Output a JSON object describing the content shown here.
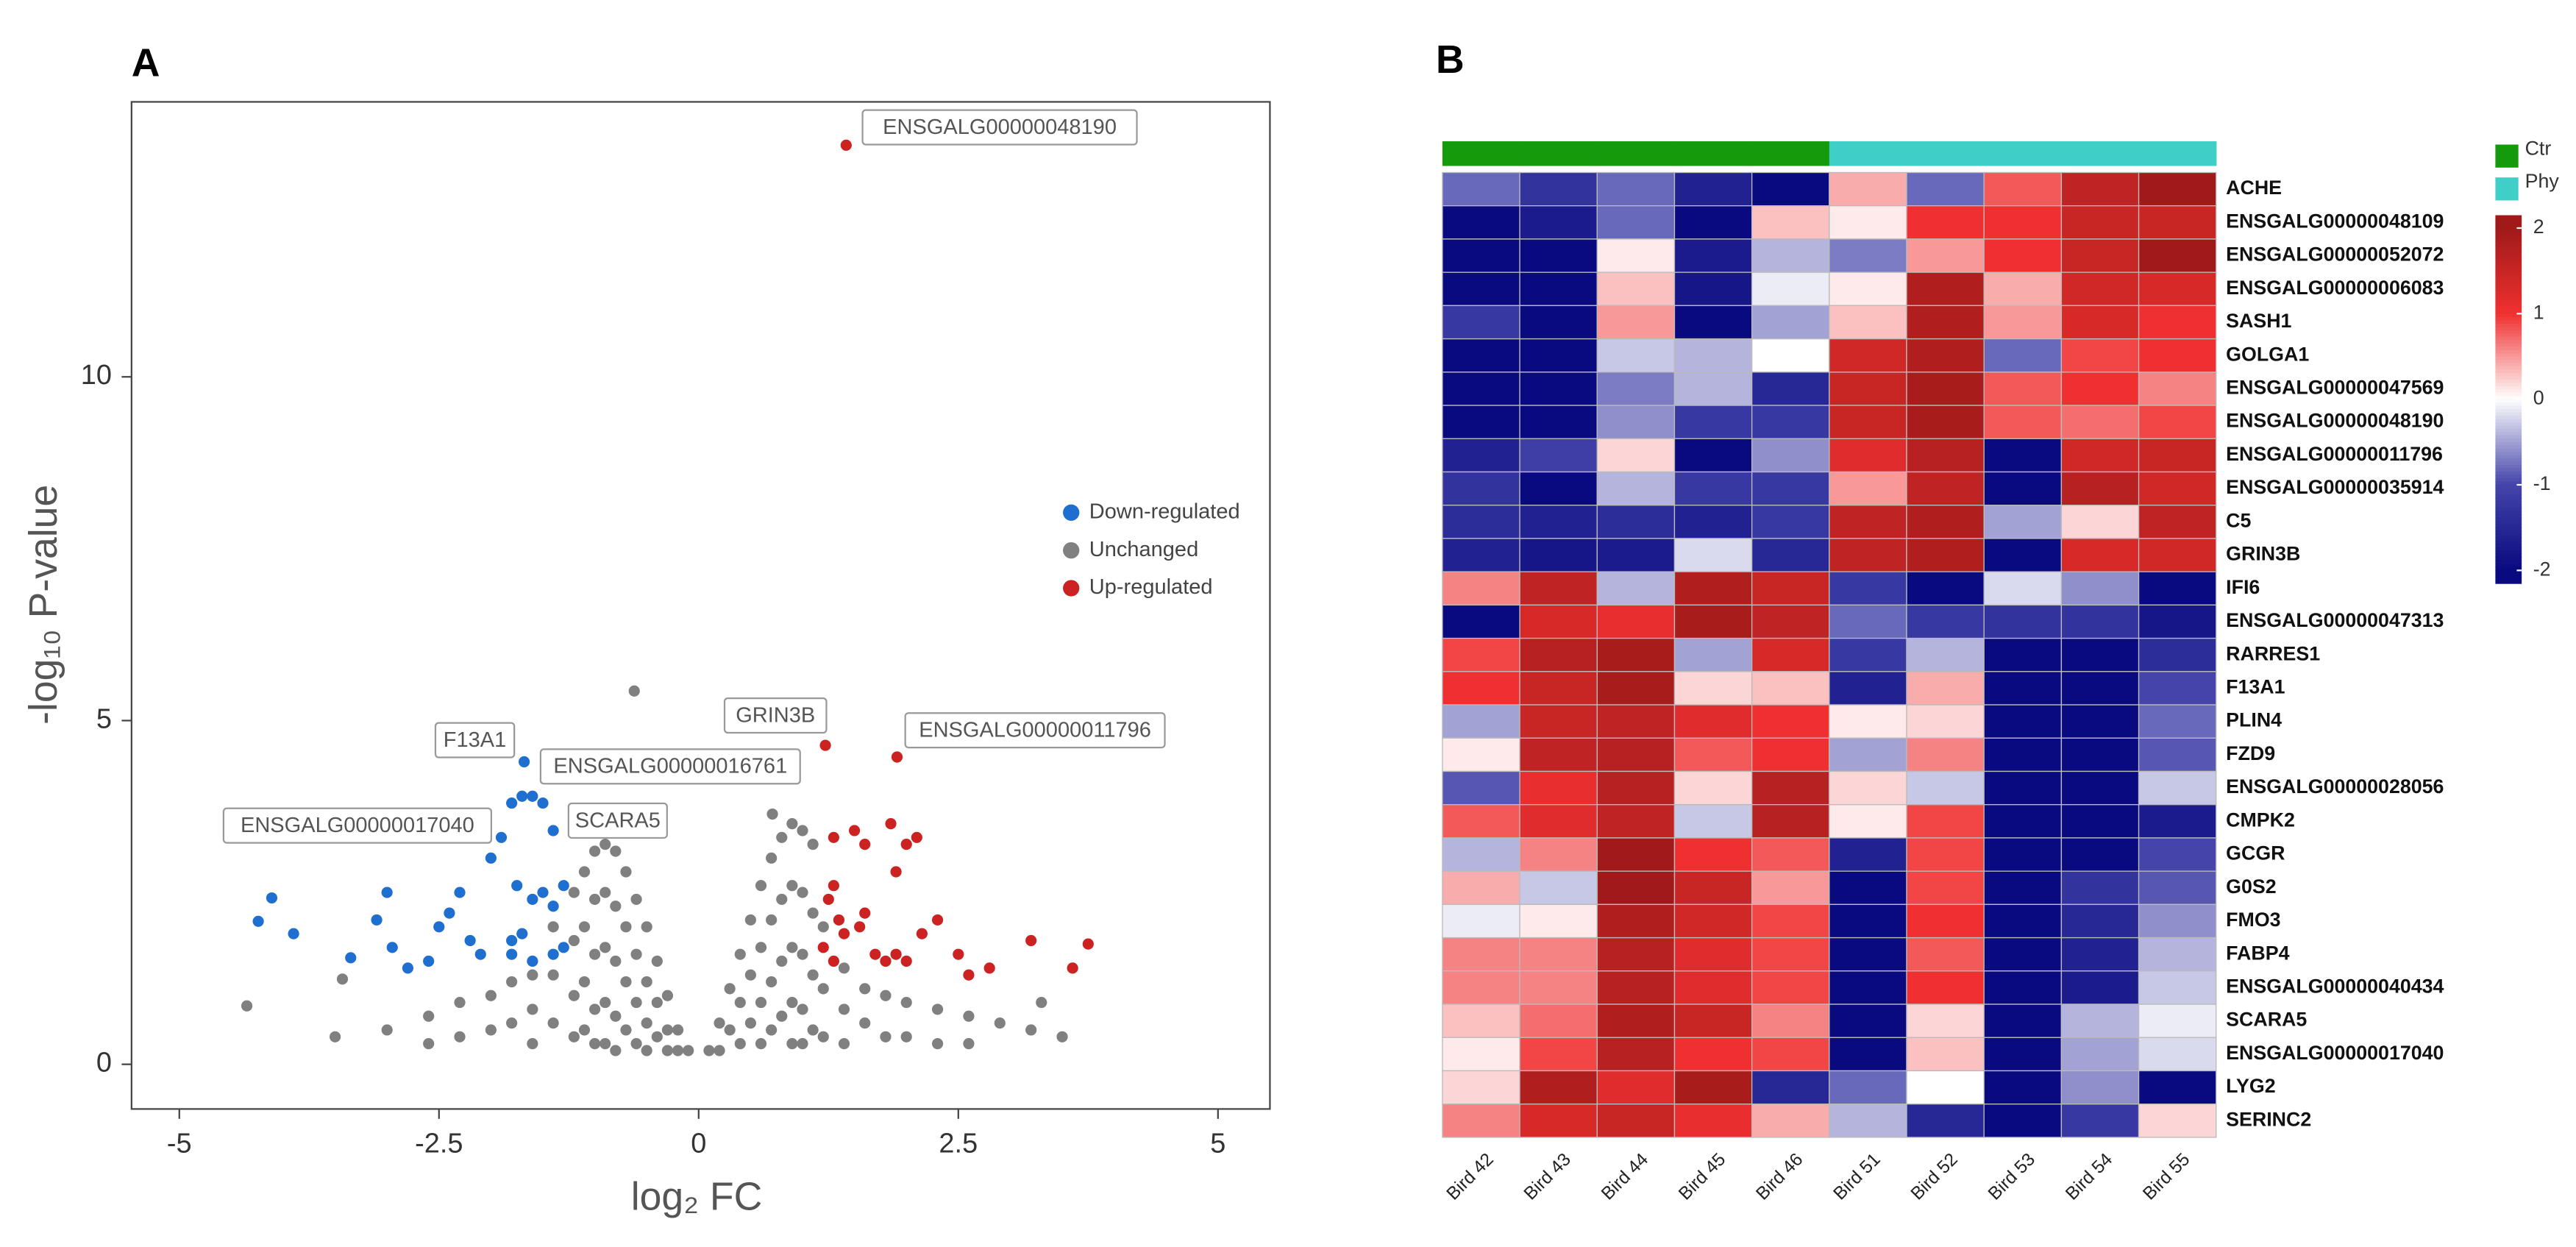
{
  "chart_data": [
    {
      "type": "scatter",
      "panel": "A",
      "xlabel": "log₂ FC",
      "ylabel": "-log₁₀ P-value",
      "xlim": [
        -5.46,
        5.5
      ],
      "ylim": [
        -0.65,
        14.0
      ],
      "xticks": [
        -5,
        -2.5,
        0,
        2.5,
        5
      ],
      "yticks": [
        0,
        5,
        10
      ],
      "legend": "center right",
      "series": [
        {
          "name": "Down-regulated",
          "color": "#1f6fd1",
          "x": [
            -3.9,
            -3.35,
            -3.0,
            -3.1,
            -2.95,
            -2.8,
            -2.6,
            -2.5,
            -2.4,
            -2.2,
            -2.1,
            -2.0,
            -1.9,
            -1.8,
            -1.7,
            -1.6,
            -1.5,
            -1.4,
            -1.75,
            -1.6,
            -1.5,
            -1.4,
            -1.3,
            -1.8,
            -1.6,
            -1.4,
            -1.3,
            -1.7,
            -2.3,
            -1.8,
            -1.68,
            -4.24,
            -4.11
          ],
          "y": [
            1.9,
            1.55,
            2.5,
            2.1,
            1.7,
            1.4,
            1.5,
            2.0,
            2.2,
            1.8,
            1.6,
            3.0,
            3.3,
            3.8,
            3.9,
            3.9,
            3.8,
            3.4,
            2.6,
            2.4,
            2.5,
            2.3,
            2.6,
            1.6,
            1.5,
            1.6,
            1.7,
            1.9,
            2.5,
            1.8,
            4.4,
            2.08,
            2.42
          ]
        },
        {
          "name": "Unchanged",
          "color": "#808080",
          "x": [
            -0.1,
            -0.2,
            -0.2,
            -0.3,
            -0.3,
            -0.3,
            -0.4,
            -0.4,
            -0.4,
            -0.5,
            -0.5,
            -0.5,
            -0.5,
            -0.6,
            -0.6,
            -0.6,
            -0.6,
            -0.62,
            -0.7,
            -0.7,
            -0.7,
            -0.7,
            -0.8,
            -0.8,
            -0.8,
            -0.8,
            -0.8,
            -0.9,
            -0.9,
            -0.9,
            -0.9,
            -0.9,
            -1.0,
            -1.0,
            -1.0,
            -1.0,
            -1.0,
            -1.1,
            -1.1,
            -1.1,
            -1.1,
            -1.2,
            -1.2,
            -1.2,
            -1.2,
            -1.4,
            -1.4,
            -1.4,
            -1.6,
            -1.6,
            -1.6,
            -1.8,
            -1.8,
            -2.0,
            -2.0,
            -2.3,
            -2.3,
            -2.6,
            -2.6,
            -3.0,
            -3.5,
            -3.43,
            -4.35,
            0.1,
            0.2,
            0.2,
            0.3,
            0.3,
            0.4,
            0.4,
            0.4,
            0.5,
            0.5,
            0.5,
            0.6,
            0.6,
            0.6,
            0.6,
            0.7,
            0.7,
            0.7,
            0.7,
            0.71,
            0.8,
            0.8,
            0.8,
            0.8,
            0.9,
            0.9,
            0.9,
            0.9,
            0.9,
            1.0,
            1.0,
            1.0,
            1.0,
            1.0,
            1.1,
            1.1,
            1.1,
            1.1,
            1.2,
            1.2,
            1.2,
            1.4,
            1.4,
            1.4,
            1.6,
            1.6,
            1.8,
            1.8,
            2.0,
            2.0,
            2.3,
            2.3,
            2.6,
            2.6,
            2.9,
            3.2,
            3.5,
            3.3
          ],
          "y": [
            0.2,
            0.5,
            0.2,
            1.0,
            0.5,
            0.2,
            1.5,
            0.9,
            0.4,
            2.0,
            1.2,
            0.6,
            0.2,
            2.4,
            1.6,
            0.9,
            0.3,
            5.43,
            2.8,
            2.0,
            1.2,
            0.5,
            3.1,
            2.3,
            1.5,
            0.7,
            0.2,
            3.2,
            2.5,
            1.7,
            0.9,
            0.3,
            3.1,
            2.4,
            1.6,
            0.8,
            0.3,
            2.8,
            2.0,
            1.2,
            0.5,
            2.5,
            1.8,
            1.0,
            0.4,
            2.0,
            1.3,
            0.6,
            1.3,
            0.8,
            0.3,
            1.2,
            0.6,
            1.0,
            0.5,
            0.9,
            0.4,
            0.7,
            0.3,
            0.5,
            0.4,
            1.24,
            0.85,
            0.2,
            0.6,
            0.2,
            1.1,
            0.5,
            1.6,
            0.9,
            0.3,
            2.1,
            1.3,
            0.6,
            2.6,
            1.7,
            0.9,
            0.3,
            3.0,
            2.1,
            1.2,
            0.5,
            3.64,
            3.3,
            2.4,
            1.5,
            0.7,
            3.5,
            2.6,
            1.7,
            0.9,
            0.3,
            3.4,
            2.5,
            1.6,
            0.8,
            0.3,
            3.2,
            2.2,
            1.3,
            0.5,
            2.0,
            1.1,
            0.4,
            1.4,
            0.8,
            0.3,
            1.1,
            0.6,
            1.0,
            0.4,
            0.9,
            0.4,
            0.8,
            0.3,
            0.7,
            0.3,
            0.6,
            0.5,
            0.4,
            0.9
          ]
        },
        {
          "name": "Up-regulated",
          "color": "#cc2222",
          "x": [
            1.42,
            1.22,
            1.91,
            1.3,
            1.5,
            1.6,
            1.85,
            2.0,
            2.1,
            1.9,
            1.3,
            1.25,
            1.35,
            1.4,
            1.55,
            1.6,
            1.7,
            1.8,
            1.9,
            2.0,
            2.3,
            2.5,
            2.6,
            2.8,
            3.2,
            3.6,
            3.75,
            1.2,
            1.3,
            2.15
          ],
          "y": [
            13.37,
            4.64,
            4.47,
            3.3,
            3.4,
            3.2,
            3.5,
            3.2,
            3.3,
            2.8,
            2.6,
            2.4,
            2.1,
            1.9,
            2.0,
            2.2,
            1.6,
            1.5,
            1.6,
            1.5,
            2.1,
            1.6,
            1.3,
            1.4,
            1.8,
            1.4,
            1.75,
            1.7,
            1.5,
            1.9
          ]
        }
      ],
      "annotations": [
        "ENSGALG00000048190",
        "GRIN3B",
        "ENSGALG00000011796",
        "F13A1",
        "ENSGALG00000016761",
        "ENSGALG00000017040",
        "SCARA5"
      ]
    },
    {
      "type": "heatmap",
      "panel": "B",
      "columns": [
        "Bird 42",
        "Bird 43",
        "Bird 44",
        "Bird 45",
        "Bird 46",
        "Bird 51",
        "Bird 52",
        "Bird 53",
        "Bird 54",
        "Bird 55"
      ],
      "column_groups": [
        "Ctr",
        "Ctr",
        "Ctr",
        "Ctr",
        "Ctr",
        "Phy",
        "Phy",
        "Phy",
        "Phy",
        "Phy"
      ],
      "groups": [
        {
          "name": "Ctr",
          "color": "#159a0c"
        },
        {
          "name": "Phy",
          "color": "#40cfc8"
        }
      ],
      "rows": [
        "ACHE",
        "ENSGALG00000048109",
        "ENSGALG00000052072",
        "ENSGALG00000006083",
        "SASH1",
        "GOLGA1",
        "ENSGALG00000047569",
        "ENSGALG00000048190",
        "ENSGALG00000011796",
        "ENSGALG00000035914",
        "C5",
        "GRIN3B",
        "IFI6",
        "ENSGALG00000047313",
        "RARRES1",
        "F13A1",
        "PLIN4",
        "FZD9",
        "ENSGALG00000028056",
        "CMPK2",
        "GCGR",
        "G0S2",
        "FMO3",
        "FABP4",
        "ENSGALG00000040434",
        "SCARA5",
        "ENSGALG00000017040",
        "LYG2",
        "SERINC2"
      ],
      "values": [
        [
          -0.8,
          -1.3,
          -0.8,
          -1.6,
          -2,
          0.4,
          -0.8,
          0.8,
          1.6,
          2.0
        ],
        [
          -2,
          -1.7,
          -0.8,
          -2,
          0.3,
          0.1,
          1.0,
          1.0,
          1.5,
          1.5
        ],
        [
          -2,
          -2,
          0.1,
          -1.7,
          -0.4,
          -0.7,
          0.5,
          1.0,
          1.5,
          2.0
        ],
        [
          -2,
          -2,
          0.3,
          -1.8,
          -0.1,
          0.1,
          1.8,
          0.4,
          1.4,
          1.3
        ],
        [
          -1.2,
          -2,
          0.5,
          -2,
          -0.5,
          0.3,
          1.8,
          0.5,
          1.3,
          1.0
        ],
        [
          -2,
          -2,
          -0.3,
          -0.4,
          0.0,
          1.4,
          1.8,
          -0.8,
          0.9,
          1.0
        ],
        [
          -2,
          -2,
          -0.7,
          -0.4,
          -1.5,
          1.5,
          1.9,
          0.8,
          1.0,
          0.6
        ],
        [
          -2,
          -2,
          -0.6,
          -1.2,
          -1.2,
          1.5,
          1.9,
          0.8,
          0.7,
          0.9
        ],
        [
          -1.6,
          -1.1,
          0.2,
          -2,
          -0.6,
          1.2,
          1.7,
          -2,
          1.4,
          1.5
        ],
        [
          -1.3,
          -2,
          -0.4,
          -1.2,
          -1.2,
          0.5,
          1.6,
          -2,
          1.7,
          1.4
        ],
        [
          -1.4,
          -1.6,
          -1.4,
          -1.6,
          -1.2,
          1.6,
          1.8,
          -0.5,
          0.2,
          1.6
        ],
        [
          -1.6,
          -1.8,
          -1.7,
          -0.2,
          -1.5,
          1.6,
          1.8,
          -2,
          1.3,
          1.4
        ],
        [
          0.6,
          1.6,
          -0.4,
          1.8,
          1.5,
          -1.2,
          -2,
          -0.2,
          -0.6,
          -2
        ],
        [
          -2,
          1.3,
          1.1,
          1.9,
          1.6,
          -0.8,
          -1.2,
          -1.3,
          -1.3,
          -1.8
        ],
        [
          0.9,
          1.7,
          1.9,
          -0.5,
          1.3,
          -1.2,
          -0.4,
          -2,
          -2,
          -1.4
        ],
        [
          1.0,
          1.5,
          1.9,
          0.2,
          0.3,
          -1.6,
          0.4,
          -2,
          -2,
          -1.0
        ],
        [
          -0.5,
          1.5,
          1.6,
          1.2,
          1.0,
          0.1,
          0.2,
          -2,
          -2,
          -0.8
        ],
        [
          0.1,
          1.6,
          1.7,
          0.8,
          1.0,
          -0.5,
          0.6,
          -2,
          -2,
          -0.9
        ],
        [
          -0.9,
          1.1,
          1.7,
          0.2,
          1.7,
          0.2,
          -0.3,
          -2,
          -2,
          -0.3
        ],
        [
          0.8,
          1.2,
          1.6,
          -0.3,
          1.7,
          0.1,
          0.9,
          -2,
          -2,
          -1.7
        ],
        [
          -0.4,
          0.6,
          2.0,
          1.0,
          0.8,
          -1.6,
          0.9,
          -2,
          -2,
          -1.0
        ],
        [
          0.4,
          -0.3,
          2.0,
          1.5,
          0.5,
          -2,
          0.9,
          -2,
          -1.3,
          -0.9
        ],
        [
          -0.1,
          0.1,
          1.8,
          1.4,
          0.9,
          -2,
          1.0,
          -2,
          -1.5,
          -0.6
        ],
        [
          0.6,
          0.6,
          1.7,
          1.2,
          0.9,
          -2,
          0.8,
          -2,
          -1.6,
          -0.4
        ],
        [
          0.6,
          0.6,
          1.7,
          1.2,
          0.9,
          -2,
          1.0,
          -2,
          -1.7,
          -0.3
        ],
        [
          0.3,
          0.7,
          1.8,
          1.5,
          0.6,
          -2,
          0.2,
          -2,
          -0.4,
          -0.1
        ],
        [
          0.1,
          0.9,
          1.7,
          1.0,
          0.9,
          -2,
          0.3,
          -2,
          -0.5,
          -0.2
        ],
        [
          0.2,
          1.8,
          1.2,
          1.9,
          -1.5,
          -0.8,
          0.0,
          -2,
          -0.6,
          -2
        ],
        [
          0.6,
          1.3,
          1.5,
          1.1,
          0.4,
          -0.4,
          -1.5,
          -2,
          -1.2,
          0.2
        ]
      ],
      "clim": [
        -2.15,
        2.15
      ],
      "cticks": [
        2,
        1,
        0,
        -1,
        -2
      ],
      "color_stops": [
        [
          -2,
          "#0a0a80"
        ],
        [
          -1,
          "#4444aa"
        ],
        [
          0,
          "#ffffff"
        ],
        [
          1,
          "#f03030"
        ],
        [
          2,
          "#a01a1a"
        ]
      ]
    }
  ]
}
